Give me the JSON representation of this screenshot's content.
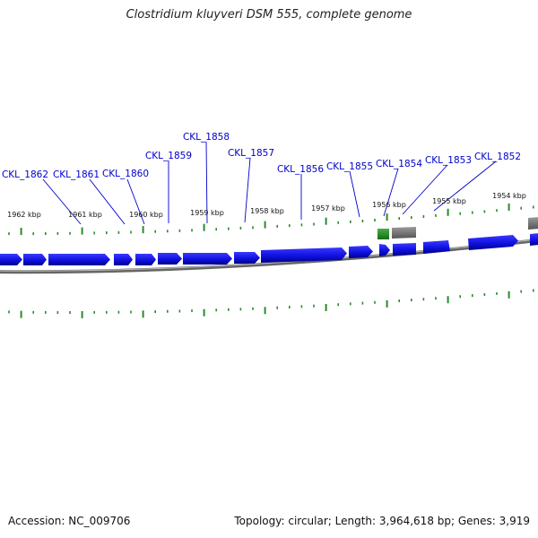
{
  "title": "Clostridium kluyveri DSM 555, complete genome",
  "footer": {
    "accession": "Accession: NC_009706",
    "summary": "Topology: circular; Length: 3,964,618 bp; Genes: 3,919"
  },
  "colors": {
    "gene": "#1010e0",
    "gene_dark": "#000090",
    "tick": "#2a8a2a",
    "rna": "#2a9a2a",
    "other": "#777777",
    "label": "#0000cc",
    "backbone": "#7a7a7a"
  },
  "tick_labels": [
    "1962 kbp",
    "1961 kbp",
    "1960 kbp",
    "1959 kbp",
    "1958 kbp",
    "1957 kbp",
    "1956 kbp",
    "1955 kbp",
    "1954 kbp"
  ],
  "gene_labels": [
    "CKL_1862",
    "CKL_1861",
    "CKL_1860",
    "CKL_1859",
    "CKL_1858",
    "CKL_1857",
    "CKL_1856",
    "CKL_1855",
    "CKL_1854",
    "CKL_1853",
    "CKL_1852"
  ]
}
